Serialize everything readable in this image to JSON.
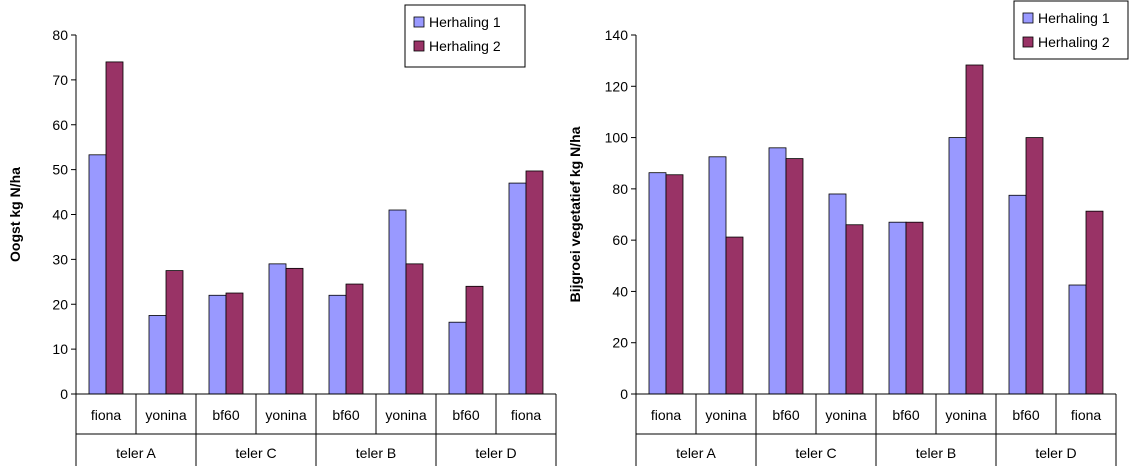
{
  "chart_data": [
    {
      "type": "bar",
      "ylabel": "Oogst   kg N/ha",
      "ylim": [
        0,
        80
      ],
      "yticks": [
        0,
        10,
        20,
        30,
        40,
        50,
        60,
        70,
        80
      ],
      "categories": [
        "fiona",
        "yonina",
        "bf60",
        "yonina",
        "bf60",
        "yonina",
        "bf60",
        "fiona"
      ],
      "groups": [
        "teler A",
        "teler C",
        "teler B",
        "teler D"
      ],
      "series": [
        {
          "name": "Herhaling 1",
          "color": "#9999ff",
          "values": [
            53.3,
            17.5,
            22,
            29,
            22,
            41,
            16,
            47
          ]
        },
        {
          "name": "Herhaling 2",
          "color": "#993366",
          "values": [
            74,
            27.5,
            22.5,
            28,
            24.5,
            29,
            24,
            49.7
          ]
        }
      ],
      "legend": "top-right",
      "grid": false
    },
    {
      "type": "bar",
      "ylabel": "Bijgroei  vegetatief   kg N/ha",
      "ylim": [
        0,
        140
      ],
      "yticks": [
        0,
        20,
        40,
        60,
        80,
        100,
        120,
        140
      ],
      "categories": [
        "fiona",
        "yonina",
        "bf60",
        "yonina",
        "bf60",
        "yonina",
        "bf60",
        "fiona"
      ],
      "groups": [
        "teler A",
        "teler C",
        "teler B",
        "teler D"
      ],
      "series": [
        {
          "name": "Herhaling 1",
          "color": "#9999ff",
          "values": [
            86.3,
            92.5,
            96,
            78,
            67,
            100,
            77.5,
            42.5
          ]
        },
        {
          "name": "Herhaling 2",
          "color": "#993366",
          "values": [
            85.5,
            61.2,
            91.8,
            66,
            67,
            128.3,
            100,
            71.3
          ]
        }
      ],
      "legend": "top-right",
      "grid": false
    }
  ]
}
